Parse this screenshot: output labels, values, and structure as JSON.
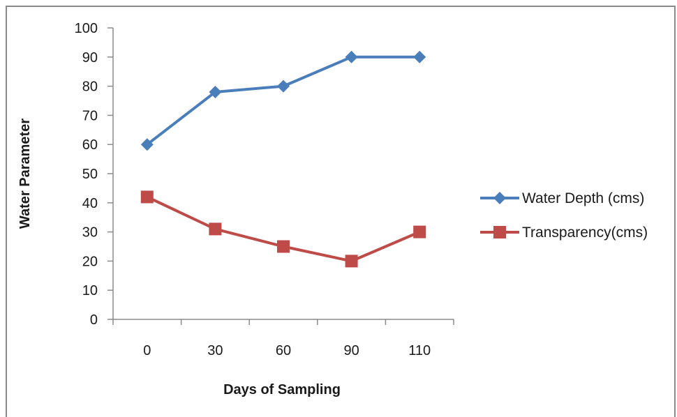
{
  "chart_data": {
    "type": "line",
    "title": "",
    "xlabel": "Days of Sampling",
    "ylabel": "Water Parameter",
    "categories": [
      "0",
      "30",
      "60",
      "90",
      "110"
    ],
    "ylim": [
      0,
      100
    ],
    "y_ticks": [
      "0",
      "10",
      "20",
      "30",
      "40",
      "50",
      "60",
      "70",
      "80",
      "90",
      "100"
    ],
    "grid": false,
    "legend_position": "right",
    "series": [
      {
        "name": "Water Depth (cms)",
        "values": [
          60,
          78,
          80,
          90,
          90
        ],
        "color": "#4a7ebb",
        "marker": "diamond"
      },
      {
        "name": "Transparency(cms)",
        "values": [
          42,
          31,
          25,
          20,
          30
        ],
        "color": "#be4b48",
        "marker": "square"
      }
    ]
  }
}
